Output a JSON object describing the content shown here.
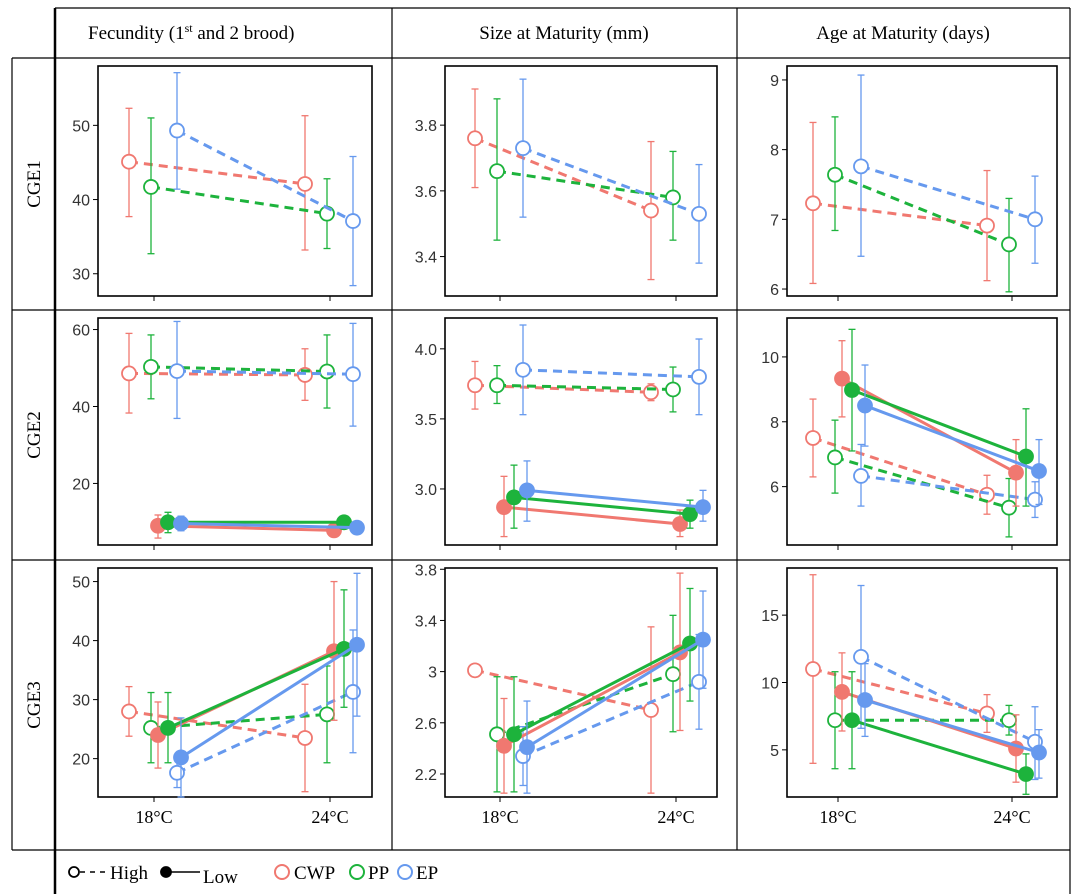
{
  "headers": {
    "col1": "Fecundity (1",
    "col1_sup": "st",
    "col1_rest": " and 2 brood)",
    "col2": "Size at Maturity (mm)",
    "col3": "Age at Maturity (days)"
  },
  "rows": [
    "CGE1",
    "CGE2",
    "CGE3"
  ],
  "legend": {
    "high": "High",
    "low": "Low",
    "cwp": "CWP",
    "pp": "PP",
    "ep": "EP"
  },
  "colors": {
    "CWP": "#f07870",
    "PP": "#1db33c",
    "EP": "#6699ee"
  },
  "chart_data": [
    {
      "type": "line",
      "row": "CGE1",
      "column": "Fecundity (1st and 2 brood)",
      "x": [
        "18°C",
        "24°C"
      ],
      "ylim": [
        27,
        58
      ],
      "yticks": [
        30,
        40,
        50
      ],
      "series": [
        {
          "name": "CWP",
          "treatment": "High",
          "values": [
            45.1,
            42.1
          ],
          "errors_low": [
            37.7,
            33.2
          ],
          "errors_high": [
            52.3,
            51.3
          ]
        },
        {
          "name": "PP",
          "treatment": "High",
          "values": [
            41.7,
            38.1
          ],
          "errors_low": [
            32.7,
            33.4
          ],
          "errors_high": [
            51.0,
            42.8
          ]
        },
        {
          "name": "EP",
          "treatment": "High",
          "values": [
            49.3,
            37.1
          ],
          "errors_low": [
            41.4,
            28.4
          ],
          "errors_high": [
            57.1,
            45.8
          ]
        }
      ]
    },
    {
      "type": "line",
      "row": "CGE1",
      "column": "Size at Maturity (mm)",
      "x": [
        "18°C",
        "24°C"
      ],
      "ylim": [
        3.28,
        3.98
      ],
      "yticks": [
        3.4,
        3.6,
        3.8
      ],
      "series": [
        {
          "name": "CWP",
          "treatment": "High",
          "values": [
            3.76,
            3.54
          ],
          "errors_low": [
            3.61,
            3.33
          ],
          "errors_high": [
            3.91,
            3.75
          ]
        },
        {
          "name": "PP",
          "treatment": "High",
          "values": [
            3.66,
            3.58
          ],
          "errors_low": [
            3.45,
            3.45
          ],
          "errors_high": [
            3.88,
            3.72
          ]
        },
        {
          "name": "EP",
          "treatment": "High",
          "values": [
            3.73,
            3.53
          ],
          "errors_low": [
            3.52,
            3.38
          ],
          "errors_high": [
            3.94,
            3.68
          ]
        }
      ]
    },
    {
      "type": "line",
      "row": "CGE1",
      "column": "Age at Maturity (days)",
      "x": [
        "18°C",
        "24°C"
      ],
      "ylim": [
        5.9,
        9.2
      ],
      "yticks": [
        6,
        7,
        8,
        9
      ],
      "series": [
        {
          "name": "CWP",
          "treatment": "High",
          "values": [
            7.23,
            6.91
          ],
          "errors_low": [
            6.08,
            6.12
          ],
          "errors_high": [
            8.39,
            7.7
          ]
        },
        {
          "name": "PP",
          "treatment": "High",
          "values": [
            7.64,
            6.64
          ],
          "errors_low": [
            6.84,
            5.96
          ],
          "errors_high": [
            8.47,
            7.3
          ]
        },
        {
          "name": "EP",
          "treatment": "High",
          "values": [
            7.76,
            7.0
          ],
          "errors_low": [
            6.47,
            6.37
          ],
          "errors_high": [
            9.07,
            7.62
          ]
        }
      ]
    },
    {
      "type": "line",
      "row": "CGE2",
      "column": "Fecundity (1st and 2 brood)",
      "x": [
        "18°C",
        "24°C"
      ],
      "ylim": [
        4,
        63
      ],
      "yticks": [
        20,
        40,
        60
      ],
      "series": [
        {
          "name": "CWP",
          "treatment": "High",
          "values": [
            48.6,
            48.2
          ],
          "errors_low": [
            38.3,
            41.6
          ],
          "errors_high": [
            59.0,
            55.0
          ]
        },
        {
          "name": "PP",
          "treatment": "High",
          "values": [
            50.3,
            49.1
          ],
          "errors_low": [
            42.0,
            39.6
          ],
          "errors_high": [
            58.6,
            58.6
          ]
        },
        {
          "name": "EP",
          "treatment": "High",
          "values": [
            49.2,
            48.4
          ],
          "errors_low": [
            36.9,
            34.9
          ],
          "errors_high": [
            62.1,
            61.6
          ]
        },
        {
          "name": "CWP",
          "treatment": "Low",
          "values": [
            9.0,
            7.8
          ],
          "errors_low": [
            5.8,
            7.0
          ],
          "errors_high": [
            11.8,
            8.6
          ]
        },
        {
          "name": "PP",
          "treatment": "Low",
          "values": [
            9.9,
            9.9
          ],
          "errors_low": [
            7.2,
            8.8
          ],
          "errors_high": [
            12.5,
            11.0
          ]
        },
        {
          "name": "EP",
          "treatment": "Low",
          "values": [
            9.6,
            8.5
          ],
          "errors_low": [
            7.7,
            7.7
          ],
          "errors_high": [
            11.5,
            9.3
          ]
        }
      ]
    },
    {
      "type": "line",
      "row": "CGE2",
      "column": "Size at Maturity (mm)",
      "x": [
        "18°C",
        "24°C"
      ],
      "ylim": [
        2.6,
        4.22
      ],
      "yticks": [
        3.0,
        3.5,
        4.0
      ],
      "series": [
        {
          "name": "CWP",
          "treatment": "High",
          "values": [
            3.74,
            3.69
          ],
          "errors_low": [
            3.57,
            3.63
          ],
          "errors_high": [
            3.91,
            3.75
          ]
        },
        {
          "name": "PP",
          "treatment": "High",
          "values": [
            3.74,
            3.71
          ],
          "errors_low": [
            3.61,
            3.55
          ],
          "errors_high": [
            3.88,
            3.87
          ]
        },
        {
          "name": "EP",
          "treatment": "High",
          "values": [
            3.85,
            3.8
          ],
          "errors_low": [
            3.53,
            3.53
          ],
          "errors_high": [
            4.17,
            4.07
          ]
        },
        {
          "name": "CWP",
          "treatment": "Low",
          "values": [
            2.87,
            2.75
          ],
          "errors_low": [
            2.66,
            2.66
          ],
          "errors_high": [
            3.09,
            2.85
          ]
        },
        {
          "name": "PP",
          "treatment": "Low",
          "values": [
            2.94,
            2.82
          ],
          "errors_low": [
            2.72,
            2.72
          ],
          "errors_high": [
            3.17,
            2.92
          ]
        },
        {
          "name": "EP",
          "treatment": "Low",
          "values": [
            2.99,
            2.87
          ],
          "errors_low": [
            2.77,
            2.77
          ],
          "errors_high": [
            3.2,
            2.99
          ]
        }
      ]
    },
    {
      "type": "line",
      "row": "CGE2",
      "column": "Age at Maturity (days)",
      "x": [
        "18°C",
        "24°C"
      ],
      "ylim": [
        4.2,
        11.2
      ],
      "yticks": [
        6,
        8,
        10
      ],
      "series": [
        {
          "name": "CWP",
          "treatment": "High",
          "values": [
            7.5,
            5.75
          ],
          "errors_low": [
            6.3,
            5.15
          ],
          "errors_high": [
            8.7,
            6.35
          ]
        },
        {
          "name": "PP",
          "treatment": "High",
          "values": [
            6.9,
            5.35
          ],
          "errors_low": [
            5.8,
            4.45
          ],
          "errors_high": [
            8.05,
            6.25
          ]
        },
        {
          "name": "EP",
          "treatment": "High",
          "values": [
            6.33,
            5.6
          ],
          "errors_low": [
            5.4,
            5.05
          ],
          "errors_high": [
            7.3,
            6.15
          ]
        },
        {
          "name": "CWP",
          "treatment": "Low",
          "values": [
            9.33,
            6.43
          ],
          "errors_low": [
            8.15,
            5.4
          ],
          "errors_high": [
            10.5,
            7.45
          ]
        },
        {
          "name": "PP",
          "treatment": "Low",
          "values": [
            8.98,
            6.93
          ],
          "errors_low": [
            7.1,
            5.4
          ],
          "errors_high": [
            10.85,
            8.4
          ]
        },
        {
          "name": "EP",
          "treatment": "Low",
          "values": [
            8.5,
            6.48
          ],
          "errors_low": [
            7.25,
            5.45
          ],
          "errors_high": [
            9.75,
            7.45
          ]
        }
      ]
    },
    {
      "type": "line",
      "row": "CGE3",
      "column": "Fecundity (1st and 2 brood)",
      "x": [
        "18°C",
        "24°C"
      ],
      "ylim": [
        13.5,
        52.3
      ],
      "yticks": [
        20,
        30,
        40,
        50
      ],
      "series": [
        {
          "name": "CWP",
          "treatment": "High",
          "values": [
            28.0,
            23.5
          ],
          "errors_low": [
            23.8,
            14.4
          ],
          "errors_high": [
            32.2,
            32.6
          ]
        },
        {
          "name": "PP",
          "treatment": "High",
          "values": [
            25.2,
            27.5
          ],
          "errors_low": [
            19.3,
            19.3
          ],
          "errors_high": [
            31.2,
            35.7
          ]
        },
        {
          "name": "EP",
          "treatment": "High",
          "values": [
            17.6,
            31.3
          ],
          "errors_low": [
            15.1,
            21.0
          ],
          "errors_high": [
            20.2,
            41.8
          ]
        },
        {
          "name": "CWP",
          "treatment": "Low",
          "values": [
            24.0,
            38.2
          ],
          "errors_low": [
            18.4,
            26.5
          ],
          "errors_high": [
            29.6,
            50.0
          ]
        },
        {
          "name": "PP",
          "treatment": "Low",
          "values": [
            25.2,
            38.6
          ],
          "errors_low": [
            19.3,
            28.7
          ],
          "errors_high": [
            31.2,
            48.6
          ]
        },
        {
          "name": "EP",
          "treatment": "Low",
          "values": [
            20.2,
            39.3
          ],
          "errors_low": [
            13.5,
            27.2
          ],
          "errors_high": [
            26.9,
            51.4
          ]
        }
      ]
    },
    {
      "type": "line",
      "row": "CGE3",
      "column": "Size at Maturity (mm)",
      "x": [
        "18°C",
        "24°C"
      ],
      "ylim": [
        2.02,
        3.81
      ],
      "yticks": [
        2.2,
        2.6,
        3.0,
        3.4,
        3.8
      ],
      "series": [
        {
          "name": "CWP",
          "treatment": "High",
          "values": [
            3.01,
            2.7
          ],
          "errors_low": [
            3.01,
            2.05
          ],
          "errors_high": [
            3.01,
            3.35
          ]
        },
        {
          "name": "PP",
          "treatment": "High",
          "values": [
            2.51,
            2.98
          ],
          "errors_low": [
            2.06,
            2.53
          ],
          "errors_high": [
            2.96,
            3.44
          ]
        },
        {
          "name": "EP",
          "treatment": "High",
          "values": [
            2.34,
            2.92
          ],
          "errors_low": [
            2.11,
            2.55
          ],
          "errors_high": [
            2.57,
            3.29
          ]
        },
        {
          "name": "CWP",
          "treatment": "Low",
          "values": [
            2.42,
            3.15
          ],
          "errors_low": [
            2.05,
            2.54
          ],
          "errors_high": [
            2.79,
            3.77
          ]
        },
        {
          "name": "PP",
          "treatment": "Low",
          "values": [
            2.51,
            3.22
          ],
          "errors_low": [
            2.06,
            2.77
          ],
          "errors_high": [
            2.96,
            3.65
          ]
        },
        {
          "name": "EP",
          "treatment": "Low",
          "values": [
            2.41,
            3.25
          ],
          "errors_low": [
            2.05,
            2.87
          ],
          "errors_high": [
            2.77,
            3.63
          ]
        }
      ]
    },
    {
      "type": "line",
      "row": "CGE3",
      "column": "Age at Maturity (days)",
      "x": [
        "18°C",
        "24°C"
      ],
      "ylim": [
        1.5,
        18.5
      ],
      "yticks": [
        5,
        10,
        15
      ],
      "series": [
        {
          "name": "CWP",
          "treatment": "High",
          "values": [
            11.0,
            7.7
          ],
          "errors_low": [
            4.0,
            6.3
          ],
          "errors_high": [
            18.0,
            9.1
          ]
        },
        {
          "name": "PP",
          "treatment": "High",
          "values": [
            7.2,
            7.2
          ],
          "errors_low": [
            3.6,
            6.1
          ],
          "errors_high": [
            10.8,
            8.3
          ]
        },
        {
          "name": "EP",
          "treatment": "High",
          "values": [
            11.9,
            5.6
          ],
          "errors_low": [
            6.6,
            2.8
          ],
          "errors_high": [
            17.2,
            8.2
          ]
        },
        {
          "name": "CWP",
          "treatment": "Low",
          "values": [
            9.3,
            5.1
          ],
          "errors_low": [
            6.4,
            2.6
          ],
          "errors_high": [
            12.2,
            7.6
          ]
        },
        {
          "name": "PP",
          "treatment": "Low",
          "values": [
            7.2,
            3.2
          ],
          "errors_low": [
            3.6,
            1.7
          ],
          "errors_high": [
            10.8,
            4.7
          ]
        },
        {
          "name": "EP",
          "treatment": "Low",
          "values": [
            8.7,
            4.8
          ],
          "errors_low": [
            6.0,
            2.9
          ],
          "errors_high": [
            11.4,
            6.5
          ]
        }
      ]
    }
  ]
}
